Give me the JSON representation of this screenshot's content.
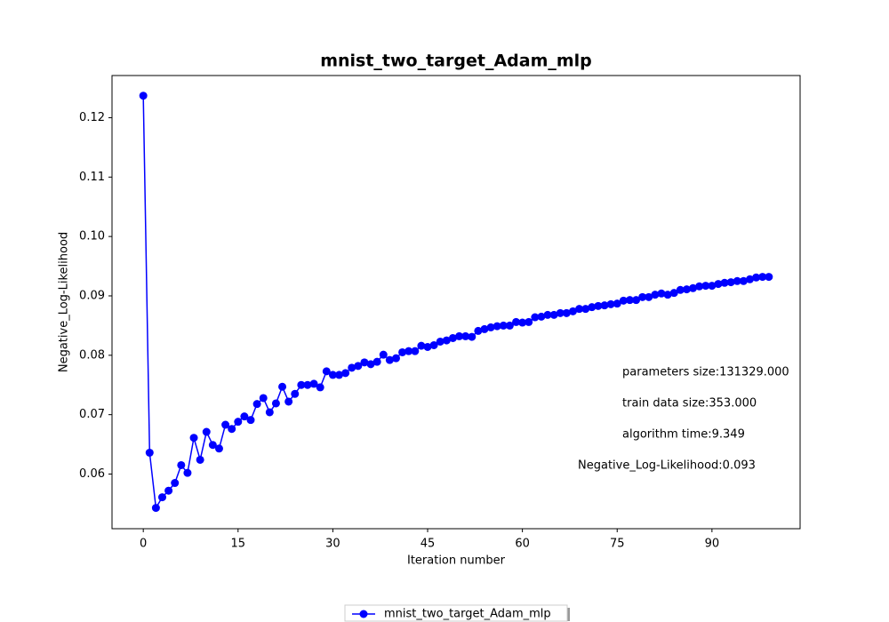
{
  "chart_data": {
    "type": "line",
    "title": "mnist_two_target_Adam_mlp",
    "x_label": "Iteration number",
    "y_label": "Negative_Log-Likelihood",
    "x": [
      0,
      1,
      2,
      3,
      4,
      5,
      6,
      7,
      8,
      9,
      10,
      11,
      12,
      13,
      14,
      15,
      16,
      17,
      18,
      19,
      20,
      21,
      22,
      23,
      24,
      25,
      26,
      27,
      28,
      29,
      30,
      31,
      32,
      33,
      34,
      35,
      36,
      37,
      38,
      39,
      40,
      41,
      42,
      43,
      44,
      45,
      46,
      47,
      48,
      49,
      50,
      51,
      52,
      53,
      54,
      55,
      56,
      57,
      58,
      59,
      60,
      61,
      62,
      63,
      64,
      65,
      66,
      67,
      68,
      69,
      70,
      71,
      72,
      73,
      74,
      75,
      76,
      77,
      78,
      79,
      80,
      81,
      82,
      83,
      84,
      85,
      86,
      87,
      88,
      89,
      90,
      91,
      92,
      93,
      94,
      95,
      96,
      97,
      98,
      99
    ],
    "series": [
      {
        "name": "mnist_two_target_Adam_mlp",
        "color": "#0000ff",
        "values": [
          0.1237,
          0.0636,
          0.0543,
          0.0561,
          0.0572,
          0.0585,
          0.0615,
          0.0602,
          0.0661,
          0.0624,
          0.0671,
          0.0649,
          0.0643,
          0.0683,
          0.0676,
          0.0688,
          0.0697,
          0.0691,
          0.0718,
          0.0728,
          0.0704,
          0.0719,
          0.0747,
          0.0722,
          0.0735,
          0.075,
          0.075,
          0.0752,
          0.0746,
          0.0773,
          0.0767,
          0.0767,
          0.077,
          0.0779,
          0.0782,
          0.0788,
          0.0785,
          0.0789,
          0.0801,
          0.0792,
          0.0795,
          0.0805,
          0.0807,
          0.0807,
          0.0816,
          0.0814,
          0.0817,
          0.0823,
          0.0825,
          0.0829,
          0.0832,
          0.0832,
          0.0831,
          0.0841,
          0.0844,
          0.0847,
          0.0849,
          0.085,
          0.085,
          0.0856,
          0.0855,
          0.0856,
          0.0864,
          0.0865,
          0.0868,
          0.0868,
          0.0871,
          0.0871,
          0.0874,
          0.0878,
          0.0878,
          0.0881,
          0.0883,
          0.0884,
          0.0886,
          0.0887,
          0.0892,
          0.0893,
          0.0893,
          0.0898,
          0.0898,
          0.0902,
          0.0904,
          0.0902,
          0.0905,
          0.091,
          0.0911,
          0.0913,
          0.0916,
          0.0917,
          0.0917,
          0.092,
          0.0922,
          0.0923,
          0.0925,
          0.0925,
          0.0928,
          0.0931,
          0.0932,
          0.0932
        ]
      }
    ],
    "xlim": [
      -4.95,
      103.95
    ],
    "ylim": [
      0.0508,
      0.1271
    ],
    "xticks": [
      0,
      15,
      30,
      45,
      60,
      75,
      90
    ],
    "yticks": [
      0.06,
      0.07,
      0.08,
      0.09,
      {
        "value": 0.1,
        "label": "0.10"
      },
      0.11,
      0.12
    ],
    "grid": false,
    "legend": "lower center",
    "annotations": [
      "parameters size:131329.000",
      "train data size:353.000",
      "algorithm time:9.349",
      "Negative_Log-Likelihood:0.093"
    ]
  }
}
